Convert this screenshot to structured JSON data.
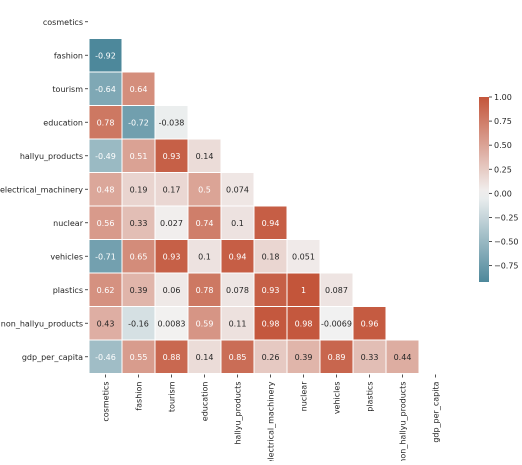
{
  "chart_data": {
    "type": "heatmap",
    "variables": [
      "cosmetics",
      "fashion",
      "tourism",
      "education",
      "hallyu_products",
      "electrical_machinery",
      "nuclear",
      "vehicles",
      "plastics",
      "non_hallyu_products",
      "gdp_per_capita"
    ],
    "mask": "upper-triangle",
    "cells": [
      {
        "row": 1,
        "col": 0,
        "value": -0.92,
        "label": "-0.92"
      },
      {
        "row": 2,
        "col": 0,
        "value": -0.64,
        "label": "-0.64"
      },
      {
        "row": 2,
        "col": 1,
        "value": 0.64,
        "label": "0.64"
      },
      {
        "row": 3,
        "col": 0,
        "value": 0.78,
        "label": "0.78"
      },
      {
        "row": 3,
        "col": 1,
        "value": -0.72,
        "label": "-0.72"
      },
      {
        "row": 3,
        "col": 2,
        "value": -0.038,
        "label": "-0.038"
      },
      {
        "row": 4,
        "col": 0,
        "value": -0.49,
        "label": "-0.49"
      },
      {
        "row": 4,
        "col": 1,
        "value": 0.51,
        "label": "0.51"
      },
      {
        "row": 4,
        "col": 2,
        "value": 0.93,
        "label": "0.93"
      },
      {
        "row": 4,
        "col": 3,
        "value": 0.14,
        "label": "0.14"
      },
      {
        "row": 5,
        "col": 0,
        "value": 0.48,
        "label": "0.48"
      },
      {
        "row": 5,
        "col": 1,
        "value": 0.19,
        "label": "0.19"
      },
      {
        "row": 5,
        "col": 2,
        "value": 0.17,
        "label": "0.17"
      },
      {
        "row": 5,
        "col": 3,
        "value": 0.5,
        "label": "0.5"
      },
      {
        "row": 5,
        "col": 4,
        "value": 0.074,
        "label": "0.074"
      },
      {
        "row": 6,
        "col": 0,
        "value": 0.56,
        "label": "0.56"
      },
      {
        "row": 6,
        "col": 1,
        "value": 0.33,
        "label": "0.33"
      },
      {
        "row": 6,
        "col": 2,
        "value": 0.027,
        "label": "0.027"
      },
      {
        "row": 6,
        "col": 3,
        "value": 0.74,
        "label": "0.74"
      },
      {
        "row": 6,
        "col": 4,
        "value": 0.1,
        "label": "0.1"
      },
      {
        "row": 6,
        "col": 5,
        "value": 0.94,
        "label": "0.94"
      },
      {
        "row": 7,
        "col": 0,
        "value": -0.71,
        "label": "-0.71"
      },
      {
        "row": 7,
        "col": 1,
        "value": 0.65,
        "label": "0.65"
      },
      {
        "row": 7,
        "col": 2,
        "value": 0.93,
        "label": "0.93"
      },
      {
        "row": 7,
        "col": 3,
        "value": 0.1,
        "label": "0.1"
      },
      {
        "row": 7,
        "col": 4,
        "value": 0.94,
        "label": "0.94"
      },
      {
        "row": 7,
        "col": 5,
        "value": 0.18,
        "label": "0.18"
      },
      {
        "row": 7,
        "col": 6,
        "value": 0.051,
        "label": "0.051"
      },
      {
        "row": 8,
        "col": 0,
        "value": 0.62,
        "label": "0.62"
      },
      {
        "row": 8,
        "col": 1,
        "value": 0.39,
        "label": "0.39"
      },
      {
        "row": 8,
        "col": 2,
        "value": 0.06,
        "label": "0.06"
      },
      {
        "row": 8,
        "col": 3,
        "value": 0.78,
        "label": "0.78"
      },
      {
        "row": 8,
        "col": 4,
        "value": 0.078,
        "label": "0.078"
      },
      {
        "row": 8,
        "col": 5,
        "value": 0.93,
        "label": "0.93"
      },
      {
        "row": 8,
        "col": 6,
        "value": 1,
        "label": "1"
      },
      {
        "row": 8,
        "col": 7,
        "value": 0.087,
        "label": "0.087"
      },
      {
        "row": 9,
        "col": 0,
        "value": 0.43,
        "label": "0.43"
      },
      {
        "row": 9,
        "col": 1,
        "value": -0.16,
        "label": "-0.16"
      },
      {
        "row": 9,
        "col": 2,
        "value": 0.0083,
        "label": "0.0083"
      },
      {
        "row": 9,
        "col": 3,
        "value": 0.59,
        "label": "0.59"
      },
      {
        "row": 9,
        "col": 4,
        "value": 0.11,
        "label": "0.11"
      },
      {
        "row": 9,
        "col": 5,
        "value": 0.98,
        "label": "0.98"
      },
      {
        "row": 9,
        "col": 6,
        "value": 0.98,
        "label": "0.98"
      },
      {
        "row": 9,
        "col": 7,
        "value": -0.0069,
        "label": "-0.0069"
      },
      {
        "row": 9,
        "col": 8,
        "value": 0.96,
        "label": "0.96"
      },
      {
        "row": 10,
        "col": 0,
        "value": -0.46,
        "label": "-0.46"
      },
      {
        "row": 10,
        "col": 1,
        "value": 0.55,
        "label": "0.55"
      },
      {
        "row": 10,
        "col": 2,
        "value": 0.88,
        "label": "0.88"
      },
      {
        "row": 10,
        "col": 3,
        "value": 0.14,
        "label": "0.14"
      },
      {
        "row": 10,
        "col": 4,
        "value": 0.85,
        "label": "0.85"
      },
      {
        "row": 10,
        "col": 5,
        "value": 0.26,
        "label": "0.26"
      },
      {
        "row": 10,
        "col": 6,
        "value": 0.39,
        "label": "0.39"
      },
      {
        "row": 10,
        "col": 7,
        "value": 0.89,
        "label": "0.89"
      },
      {
        "row": 10,
        "col": 8,
        "value": 0.33,
        "label": "0.33"
      },
      {
        "row": 10,
        "col": 9,
        "value": 0.44,
        "label": "0.44"
      }
    ],
    "colorbar": {
      "range": [
        -0.92,
        1.0
      ],
      "ticks": [
        1.0,
        0.75,
        0.5,
        0.25,
        0.0,
        -0.25,
        -0.5,
        -0.75
      ],
      "tick_labels": [
        "1.00",
        "0.75",
        "0.50",
        "0.25",
        "0.00",
        "−0.25",
        "−0.50",
        "−0.75"
      ],
      "colors": {
        "negative": "#3f7f93",
        "center": "#f2f2f2",
        "positive": "#c3553a"
      },
      "placement": "right"
    },
    "title": "",
    "xlabel": "",
    "ylabel": ""
  }
}
